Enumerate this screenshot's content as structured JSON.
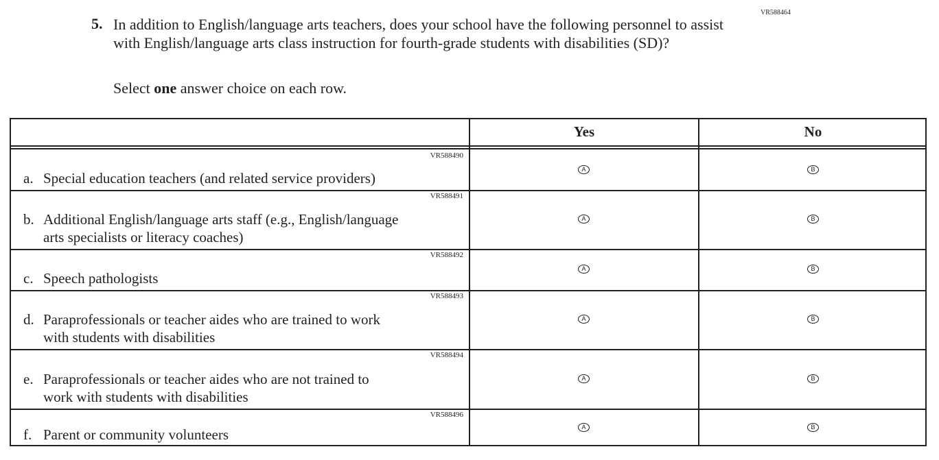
{
  "question": {
    "id": "VR588464",
    "number": "5.",
    "text": "In addition to English/language arts teachers, does your school have the following personnel to assist with English/language arts class instruction for fourth-grade students with disabilities (SD)?",
    "instruction_pre": "Select ",
    "instruction_bold": "one",
    "instruction_post": " answer choice on each row."
  },
  "table": {
    "columns": [
      "Yes",
      "No"
    ],
    "rows": [
      {
        "id": "VR588490",
        "letter": "a.",
        "line1": "Special education teachers (and related service providers)",
        "line2": "",
        "yes": "A",
        "no": "B"
      },
      {
        "id": "VR588491",
        "letter": "b.",
        "line1": "Additional English/language arts staff (e.g., English/language",
        "line2": "arts specialists or literacy coaches)",
        "yes": "A",
        "no": "B"
      },
      {
        "id": "VR588492",
        "letter": "c.",
        "line1": "Speech pathologists",
        "line2": "",
        "yes": "A",
        "no": "B"
      },
      {
        "id": "VR588493",
        "letter": "d.",
        "line1": "Paraprofessionals or teacher aides who are trained to work",
        "line2": "with students with disabilities",
        "yes": "A",
        "no": "B"
      },
      {
        "id": "VR588494",
        "letter": "e.",
        "line1": "Paraprofessionals or teacher aides who are not trained to",
        "line2": "work with students with disabilities",
        "yes": "A",
        "no": "B"
      },
      {
        "id": "VR588496",
        "letter": "f.",
        "line1": "Parent or community volunteers",
        "line2": "",
        "yes": "A",
        "no": "B"
      }
    ]
  }
}
